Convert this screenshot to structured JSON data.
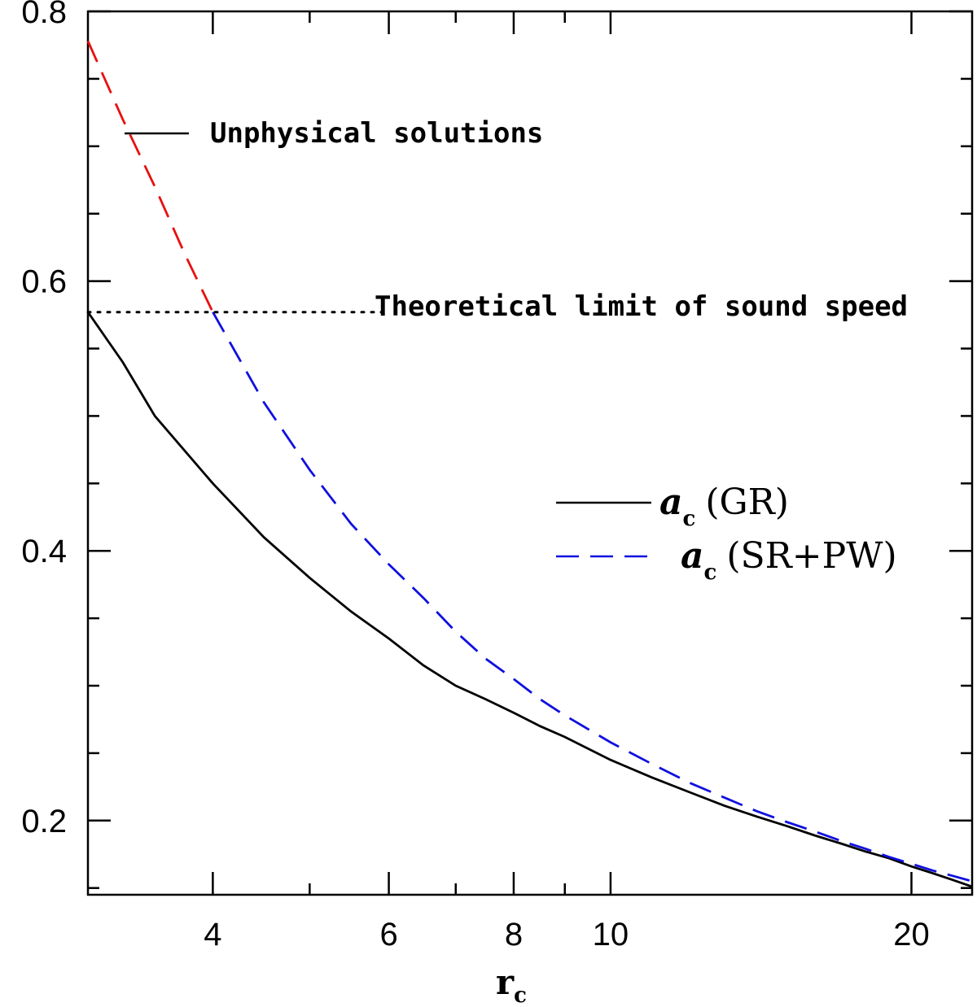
{
  "chart_data": {
    "type": "line",
    "title": "",
    "xlabel": "r",
    "xlabel_subscript": "c",
    "ylabel": "",
    "xscale": "log",
    "xlim": [
      3,
      23
    ],
    "ylim": [
      0.145,
      0.8
    ],
    "x_ticks": [
      4,
      6,
      8,
      10,
      20
    ],
    "x_tick_labels": [
      "4",
      "6",
      "8",
      "10",
      "20"
    ],
    "x_minor_ticks": [
      5,
      7,
      9,
      30
    ],
    "y_ticks": [
      0.2,
      0.4,
      0.6,
      0.8
    ],
    "y_tick_labels": [
      "0.2",
      "0.4",
      "0.6",
      "0.8"
    ],
    "y_minor_ticks": [
      0.15,
      0.25,
      0.3,
      0.35,
      0.45,
      0.5,
      0.55,
      0.65,
      0.7,
      0.75
    ],
    "series": [
      {
        "name": "a_c (GR)",
        "style": "solid",
        "color": "#000000",
        "x": [
          3,
          3.25,
          3.5,
          4,
          4.5,
          5,
          5.5,
          6,
          6.5,
          7,
          7.5,
          8,
          8.5,
          9,
          10,
          11,
          12,
          13,
          14,
          15,
          16,
          17,
          18,
          19,
          20,
          21,
          22,
          23
        ],
        "y": [
          0.577,
          0.54,
          0.5,
          0.45,
          0.41,
          0.38,
          0.355,
          0.335,
          0.315,
          0.3,
          0.29,
          0.28,
          0.27,
          0.262,
          0.245,
          0.232,
          0.221,
          0.211,
          0.203,
          0.196,
          0.189,
          0.183,
          0.177,
          0.172,
          0.166,
          0.161,
          0.156,
          0.151
        ]
      },
      {
        "name": "a_c (SR+PW)",
        "style": "dashed",
        "color": "#1010e0",
        "x": [
          4,
          4.5,
          5,
          5.5,
          6,
          6.5,
          7,
          7.5,
          8,
          8.5,
          9,
          10,
          11,
          12,
          13,
          14,
          15,
          16,
          17,
          18,
          19,
          20,
          21,
          22,
          23
        ],
        "y": [
          0.577,
          0.51,
          0.46,
          0.42,
          0.39,
          0.365,
          0.34,
          0.32,
          0.305,
          0.29,
          0.278,
          0.258,
          0.242,
          0.228,
          0.217,
          0.207,
          0.199,
          0.192,
          0.185,
          0.179,
          0.173,
          0.168,
          0.163,
          0.159,
          0.155
        ]
      },
      {
        "name": "Unphysical solutions",
        "style": "dashed",
        "color": "#e81010",
        "x": [
          3,
          3.25,
          3.5,
          3.75,
          4
        ],
        "y": [
          0.778,
          0.72,
          0.67,
          0.62,
          0.577
        ]
      },
      {
        "name": "Theoretical limit of sound speed",
        "style": "dotted",
        "color": "#000000",
        "x": [
          3,
          6.0
        ],
        "y": [
          0.577,
          0.577
        ]
      }
    ],
    "annotations": [
      {
        "text": "Unphysical solutions"
      },
      {
        "text": "Theoretical limit of sound speed"
      }
    ],
    "legend": {
      "placement": "right-middle",
      "entries": [
        {
          "symbol": "a",
          "subscript": "c",
          "label": "(GR)",
          "style": "solid",
          "color": "#000000"
        },
        {
          "symbol": "a",
          "subscript": "c",
          "label": "(SR+PW)",
          "style": "dashed",
          "color": "#1010e0"
        }
      ]
    }
  }
}
